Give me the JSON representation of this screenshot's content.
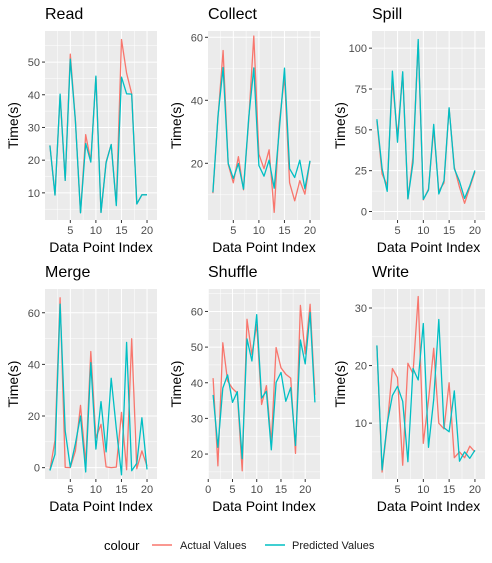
{
  "legend": {
    "title": "colour",
    "items": [
      {
        "label": "Actual Values",
        "color": "#F8766D"
      },
      {
        "label": "Predicted Values",
        "color": "#00BFC4"
      }
    ]
  },
  "chart_data": [
    {
      "type": "line",
      "title": "Read",
      "xlabel": "Data Point Index",
      "ylabel": "Time(s)",
      "xlim": [
        0.05,
        21.95
      ],
      "ylim": [
        1.7,
        59.5
      ],
      "xticks": [
        5,
        10,
        15,
        20
      ],
      "yticks": [
        10,
        20,
        30,
        40,
        50
      ],
      "x": [
        1,
        2,
        3,
        4,
        5,
        6,
        7,
        8,
        9,
        10,
        11,
        12,
        13,
        14,
        15,
        16,
        17,
        18,
        19,
        20
      ],
      "series": [
        {
          "name": "Actual Values",
          "color": "#F8766D",
          "values": [
            24.5,
            9.5,
            39.7,
            13.8,
            52.4,
            32.2,
            4.0,
            27.8,
            19.7,
            45.3,
            4.1,
            19.5,
            24.8,
            6.5,
            56.9,
            46.6,
            40.3,
            6.7,
            9.4,
            9.4
          ]
        },
        {
          "name": "Predicted Values",
          "color": "#00BFC4",
          "values": [
            24.5,
            9.3,
            40.2,
            13.8,
            50.9,
            32.0,
            3.9,
            25.1,
            19.4,
            45.7,
            4.0,
            19.2,
            24.8,
            6.1,
            45.4,
            40.3,
            40.2,
            6.6,
            9.4,
            9.4
          ]
        }
      ]
    },
    {
      "type": "line",
      "title": "Collect",
      "xlabel": "Data Point Index",
      "ylabel": "Time(s)",
      "xlim": [
        0.05,
        21.95
      ],
      "ylim": [
        2.0,
        62.0
      ],
      "xticks": [
        5,
        10,
        15,
        20
      ],
      "yticks": [
        20,
        40,
        60
      ],
      "x": [
        1,
        2,
        3,
        4,
        5,
        6,
        7,
        8,
        9,
        10,
        11,
        12,
        13,
        14,
        15,
        16,
        17,
        18,
        19,
        20
      ],
      "series": [
        {
          "name": "Actual Values",
          "color": "#F8766D",
          "values": [
            10.5,
            34.6,
            55.8,
            19.7,
            13.8,
            22.1,
            11.6,
            33.5,
            60.4,
            22.9,
            18.3,
            24.3,
            4.4,
            32.8,
            47.6,
            13.8,
            8.1,
            14.5,
            10.2,
            20.7
          ]
        },
        {
          "name": "Predicted Values",
          "color": "#00BFC4",
          "values": [
            10.8,
            35.0,
            50.4,
            20.0,
            15.2,
            19.9,
            11.8,
            34.4,
            50.3,
            19.3,
            15.9,
            21.0,
            12.1,
            30.6,
            50.2,
            18.3,
            15.5,
            21.0,
            11.9,
            20.8
          ]
        }
      ]
    },
    {
      "type": "line",
      "title": "Spill",
      "xlabel": "Data Point Index",
      "ylabel": "Time(s)",
      "xlim": [
        0.05,
        21.95
      ],
      "ylim": [
        -5.2,
        110.5
      ],
      "xticks": [
        5,
        10,
        15,
        20
      ],
      "yticks": [
        0,
        25,
        50,
        75,
        100
      ],
      "x": [
        1,
        2,
        3,
        4,
        5,
        6,
        7,
        8,
        9,
        10,
        11,
        12,
        13,
        14,
        15,
        16,
        17,
        18,
        19,
        20
      ],
      "series": [
        {
          "name": "Actual Values",
          "color": "#F8766D",
          "values": [
            55.5,
            22.9,
            16.0,
            80.6,
            46.1,
            84.8,
            7.8,
            33.4,
            104.1,
            7.1,
            13.8,
            50.7,
            12.4,
            17.5,
            63.1,
            27.2,
            14.9,
            5.0,
            14.8,
            24.2
          ]
        },
        {
          "name": "Predicted Values",
          "color": "#00BFC4",
          "values": [
            56.5,
            26.2,
            12.3,
            85.9,
            42.4,
            85.5,
            7.7,
            29.9,
            105.3,
            7.4,
            13.1,
            53.3,
            10.7,
            18.9,
            63.5,
            26.2,
            18.5,
            8.0,
            15.8,
            25.1
          ]
        }
      ]
    },
    {
      "type": "line",
      "title": "Merge",
      "xlabel": "Data Point Index",
      "ylabel": "Time(s)",
      "xlim": [
        0.05,
        21.95
      ],
      "ylim": [
        -4.4,
        69.2
      ],
      "xticks": [
        5,
        10,
        15,
        20
      ],
      "yticks": [
        0,
        20,
        40,
        60
      ],
      "x": [
        1,
        2,
        3,
        4,
        5,
        6,
        7,
        8,
        9,
        10,
        11,
        12,
        13,
        14,
        15,
        16,
        17,
        18,
        19,
        20
      ],
      "series": [
        {
          "name": "Actual Values",
          "color": "#F8766D",
          "values": [
            -1.0,
            10.5,
            65.8,
            0.1,
            0.0,
            6.5,
            24.1,
            1.6,
            45.0,
            11.5,
            16.8,
            0.3,
            0.0,
            0.2,
            21.4,
            -0.8,
            49.9,
            -0.4,
            6.5,
            0.6
          ]
        },
        {
          "name": "Predicted Values",
          "color": "#00BFC4",
          "values": [
            -1.1,
            5.2,
            63.3,
            14.2,
            0.2,
            9.3,
            20.0,
            -1.7,
            40.7,
            7.2,
            25.6,
            6.1,
            34.6,
            15.2,
            -2.8,
            48.5,
            -1.2,
            1.7,
            19.3,
            -0.7
          ]
        }
      ]
    },
    {
      "type": "line",
      "title": "Shuffle",
      "xlabel": "Data Point Index",
      "ylabel": "Time(s)",
      "xlim": [
        -0.05,
        23.05
      ],
      "ylim": [
        13.0,
        66.3
      ],
      "xticks": [
        0,
        5,
        10,
        15,
        20
      ],
      "yticks": [
        20,
        30,
        40,
        50,
        60
      ],
      "x": [
        1,
        2,
        3,
        4,
        5,
        6,
        7,
        8,
        9,
        10,
        11,
        12,
        13,
        14,
        15,
        16,
        17,
        18,
        19,
        20,
        21,
        22
      ],
      "series": [
        {
          "name": "Actual Values",
          "color": "#F8766D",
          "values": [
            41.3,
            16.7,
            51.2,
            40.5,
            38.4,
            37.1,
            15.3,
            57.8,
            47.9,
            56.4,
            33.9,
            39.2,
            23.1,
            49.9,
            44.2,
            42.4,
            41.3,
            20.2,
            61.7,
            48.1,
            62.0,
            36.6
          ]
        },
        {
          "name": "Predicted Values",
          "color": "#00BFC4",
          "values": [
            36.6,
            21.9,
            38.5,
            42.2,
            34.5,
            37.5,
            18.7,
            52.3,
            46.1,
            59.1,
            35.7,
            37.6,
            21.2,
            40.1,
            42.9,
            34.8,
            38.6,
            22.4,
            52.0,
            45.3,
            59.7,
            34.5
          ]
        }
      ]
    },
    {
      "type": "line",
      "title": "Write",
      "xlabel": "Data Point Index",
      "ylabel": "Time(s)",
      "xlim": [
        0.05,
        21.95
      ],
      "ylim": [
        0.3,
        33.3
      ],
      "xticks": [
        5,
        10,
        15,
        20
      ],
      "yticks": [
        10,
        20,
        30
      ],
      "x": [
        1,
        2,
        3,
        4,
        5,
        6,
        7,
        8,
        9,
        10,
        11,
        12,
        13,
        14,
        15,
        16,
        17,
        18,
        19,
        20
      ],
      "series": [
        {
          "name": "Actual Values",
          "color": "#F8766D",
          "values": [
            23.4,
            1.5,
            9.5,
            19.5,
            17.9,
            2.7,
            20.4,
            18.6,
            32.0,
            6.5,
            14.0,
            23.0,
            10.0,
            9.0,
            17.0,
            4.0,
            5.0,
            4.0,
            6.0,
            5.0
          ]
        },
        {
          "name": "Predicted Values",
          "color": "#00BFC4",
          "values": [
            23.5,
            1.9,
            9.9,
            14.8,
            16.4,
            13.8,
            3.3,
            19.5,
            17.5,
            27.3,
            5.8,
            14.1,
            28.0,
            9.2,
            8.5,
            15.6,
            3.4,
            5.0,
            3.9,
            5.3
          ]
        }
      ]
    }
  ]
}
